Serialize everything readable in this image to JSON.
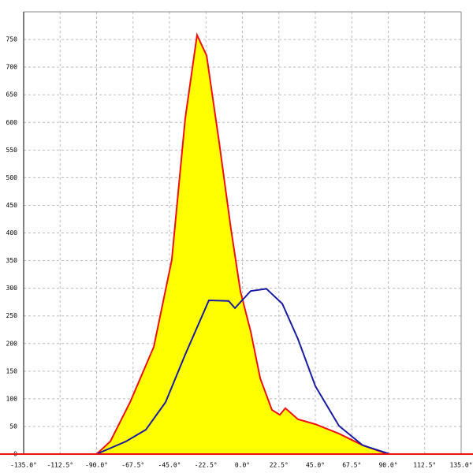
{
  "chart_data": {
    "type": "line",
    "series": [
      {
        "name": "red",
        "color": "#ee1111",
        "fill": "#ffff00",
        "x": [
          -90,
          -81.5,
          -69.3,
          -54.7,
          -43.6,
          -35.3,
          -28,
          -22.1,
          -14.4,
          -7.1,
          -1.2,
          5.1,
          11,
          18.2,
          23.1,
          26.5,
          34.3,
          45,
          59.6,
          74.2,
          88.8,
          91
        ],
        "values": [
          0,
          23,
          94,
          194,
          351,
          607,
          758,
          721,
          565,
          408,
          294,
          222,
          137,
          80,
          71,
          83,
          63,
          54,
          37,
          16,
          1,
          0
        ]
      },
      {
        "name": "blue",
        "color": "#1a1aa0",
        "x": [
          -90,
          -71.8,
          -59.6,
          -47.4,
          -35.3,
          -20.7,
          -8.5,
          -4.6,
          5.1,
          14.8,
          24.6,
          34.3,
          45,
          59.6,
          74.2,
          91
        ],
        "values": [
          0,
          23,
          44,
          94,
          180,
          278,
          277,
          264,
          295,
          299,
          272,
          208,
          123,
          51,
          16,
          0
        ]
      }
    ],
    "xlim": [
      -135,
      135
    ],
    "xticks": [
      {
        "value": -135,
        "label": "-135.0°"
      },
      {
        "value": -112.5,
        "label": "-112.5°"
      },
      {
        "value": -90,
        "label": "-90.0°"
      },
      {
        "value": -67.5,
        "label": "-67.5°"
      },
      {
        "value": -45,
        "label": "-45.0°"
      },
      {
        "value": -22.5,
        "label": "-22.5°"
      },
      {
        "value": 0,
        "label": "0.0°"
      },
      {
        "value": 22.5,
        "label": "22.5°"
      },
      {
        "value": 45,
        "label": "45.0°"
      },
      {
        "value": 67.5,
        "label": "67.5°"
      },
      {
        "value": 90,
        "label": "90.0°"
      },
      {
        "value": 112.5,
        "label": "112.5°"
      },
      {
        "value": 135,
        "label": "135.0°"
      }
    ],
    "ylim": [
      0,
      800
    ],
    "yticks": [
      0,
      50,
      100,
      150,
      200,
      250,
      300,
      350,
      400,
      450,
      500,
      550,
      600,
      650,
      700,
      750
    ],
    "grid": true
  }
}
